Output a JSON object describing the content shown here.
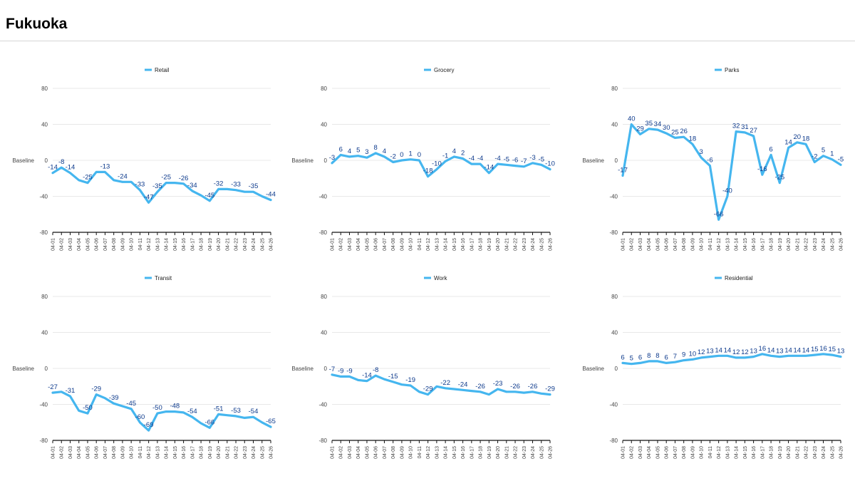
{
  "page": {
    "title": "Fukuoka"
  },
  "colors": {
    "line": "#45b6ef",
    "label": "#0d3a8c",
    "axis": "#111111",
    "text": "#444444"
  },
  "chart_data": [
    {
      "type": "line",
      "series_name": "Retail",
      "y_axis_label": "Baseline",
      "ylim": [
        -80,
        80
      ],
      "yticks": [
        -80,
        -40,
        0,
        40,
        80
      ],
      "categories": [
        "04-01",
        "04-02",
        "04-03",
        "04-04",
        "04-05",
        "04-06",
        "04-07",
        "04-08",
        "04-09",
        "04-10",
        "04-11",
        "04-12",
        "04-13",
        "04-14",
        "04-15",
        "04-16",
        "04-17",
        "04-18",
        "04-19",
        "04-20",
        "04-21",
        "04-22",
        "04-23",
        "04-24",
        "04-25",
        "04-26"
      ],
      "values": [
        -14,
        -8,
        -14,
        -22,
        -25,
        -13,
        -13,
        -22,
        -24,
        -24,
        -33,
        -47,
        -35,
        -25,
        -25,
        -26,
        -34,
        -39,
        -45,
        -32,
        -32,
        -33,
        -35,
        -35,
        -40,
        -44
      ],
      "labels": [
        -14,
        -8,
        -14,
        null,
        -25,
        null,
        -13,
        null,
        -24,
        null,
        -33,
        -47,
        -35,
        -25,
        null,
        -26,
        -34,
        null,
        -45,
        -32,
        null,
        -33,
        null,
        -35,
        null,
        -44
      ]
    },
    {
      "type": "line",
      "series_name": "Grocery",
      "y_axis_label": "Baseline",
      "ylim": [
        -80,
        80
      ],
      "yticks": [
        -80,
        -40,
        0,
        40,
        80
      ],
      "categories": [
        "04-01",
        "04-02",
        "04-03",
        "04-04",
        "04-05",
        "04-06",
        "04-07",
        "04-08",
        "04-09",
        "04-10",
        "04-11",
        "04-12",
        "04-13",
        "04-14",
        "04-15",
        "04-16",
        "04-17",
        "04-18",
        "04-19",
        "04-20",
        "04-21",
        "04-22",
        "04-23",
        "04-24",
        "04-25",
        "04-26"
      ],
      "values": [
        -3,
        6,
        4,
        5,
        3,
        8,
        4,
        -2,
        0,
        1,
        0,
        -18,
        -10,
        -1,
        4,
        2,
        -4,
        -4,
        -14,
        -4,
        -5,
        -6,
        -7,
        -3,
        -5,
        -10
      ],
      "labels": [
        -3,
        6,
        4,
        5,
        3,
        8,
        4,
        -2,
        0,
        1,
        0,
        -18,
        -10,
        -1,
        4,
        2,
        -4,
        -4,
        -14,
        -4,
        -5,
        -6,
        -7,
        -3,
        -5,
        -10
      ]
    },
    {
      "type": "line",
      "series_name": "Parks",
      "y_axis_label": "Baseline",
      "ylim": [
        -80,
        80
      ],
      "yticks": [
        -80,
        -40,
        0,
        40,
        80
      ],
      "categories": [
        "04-01",
        "04-02",
        "04-03",
        "04-04",
        "04-05",
        "04-06",
        "04-07",
        "04-08",
        "04-09",
        "04-10",
        "04-11",
        "04-12",
        "04-13",
        "04-14",
        "04-15",
        "04-16",
        "04-17",
        "04-18",
        "04-19",
        "04-20",
        "04-21",
        "04-22",
        "04-23",
        "04-24",
        "04-25",
        "04-26"
      ],
      "values": [
        -17,
        40,
        29,
        35,
        34,
        30,
        25,
        26,
        18,
        3,
        -6,
        -66,
        -40,
        32,
        31,
        27,
        -16,
        6,
        -25,
        14,
        20,
        18,
        -2,
        5,
        1,
        -5
      ],
      "labels": [
        -17,
        40,
        29,
        35,
        34,
        30,
        25,
        26,
        18,
        3,
        -6,
        -66,
        -40,
        32,
        31,
        27,
        -16,
        6,
        -25,
        14,
        20,
        18,
        -2,
        5,
        1,
        -5
      ]
    },
    {
      "type": "line",
      "series_name": "Transit",
      "y_axis_label": "Baseline",
      "ylim": [
        -80,
        80
      ],
      "yticks": [
        -80,
        -40,
        0,
        40,
        80
      ],
      "categories": [
        "04-01",
        "04-02",
        "04-03",
        "04-04",
        "04-05",
        "04-06",
        "04-07",
        "04-08",
        "04-09",
        "04-10",
        "04-11",
        "04-12",
        "04-13",
        "04-14",
        "04-15",
        "04-16",
        "04-17",
        "04-18",
        "04-19",
        "04-20",
        "04-21",
        "04-22",
        "04-23",
        "04-24",
        "04-25",
        "04-26"
      ],
      "values": [
        -27,
        -26,
        -31,
        -47,
        -50,
        -29,
        -33,
        -39,
        -42,
        -45,
        -60,
        -69,
        -50,
        -48,
        -48,
        -49,
        -54,
        -61,
        -66,
        -51,
        -52,
        -53,
        -55,
        -54,
        -60,
        -65
      ],
      "labels": [
        -27,
        null,
        -31,
        null,
        -50,
        -29,
        null,
        -39,
        null,
        -45,
        -60,
        -69,
        -50,
        null,
        -48,
        null,
        -54,
        null,
        -66,
        -51,
        null,
        -53,
        null,
        -54,
        null,
        -65
      ]
    },
    {
      "type": "line",
      "series_name": "Work",
      "y_axis_label": "Baseline",
      "ylim": [
        -80,
        80
      ],
      "yticks": [
        -80,
        -40,
        0,
        40,
        80
      ],
      "categories": [
        "04-01",
        "04-02",
        "04-03",
        "04-04",
        "04-05",
        "04-06",
        "04-07",
        "04-08",
        "04-09",
        "04-10",
        "04-11",
        "04-12",
        "04-13",
        "04-14",
        "04-15",
        "04-16",
        "04-17",
        "04-18",
        "04-19",
        "04-20",
        "04-21",
        "04-22",
        "04-23",
        "04-24",
        "04-25",
        "04-26"
      ],
      "values": [
        -7,
        -9,
        -9,
        -13,
        -14,
        -8,
        -12,
        -15,
        -18,
        -19,
        -26,
        -29,
        -20,
        -22,
        -23,
        -24,
        -25,
        -26,
        -29,
        -23,
        -26,
        -26,
        -27,
        -26,
        -28,
        -29
      ],
      "labels": [
        -7,
        -9,
        -9,
        null,
        -14,
        -8,
        null,
        -15,
        null,
        -19,
        null,
        -29,
        null,
        -22,
        null,
        -24,
        null,
        -26,
        null,
        -23,
        null,
        -26,
        null,
        -26,
        null,
        -29
      ]
    },
    {
      "type": "line",
      "series_name": "Residential",
      "y_axis_label": "Baseline",
      "ylim": [
        -80,
        80
      ],
      "yticks": [
        -80,
        -40,
        0,
        40,
        80
      ],
      "categories": [
        "04-01",
        "04-02",
        "04-03",
        "04-04",
        "04-05",
        "04-06",
        "04-07",
        "04-08",
        "04-09",
        "04-10",
        "04-11",
        "04-12",
        "04-13",
        "04-14",
        "04-15",
        "04-16",
        "04-17",
        "04-18",
        "04-19",
        "04-20",
        "04-21",
        "04-22",
        "04-23",
        "04-24",
        "04-25",
        "04-26"
      ],
      "values": [
        6,
        5,
        6,
        8,
        8,
        6,
        7,
        9,
        10,
        12,
        13,
        14,
        14,
        12,
        12,
        13,
        16,
        14,
        13,
        14,
        14,
        14,
        15,
        16,
        15,
        13
      ],
      "labels": [
        6,
        5,
        6,
        8,
        8,
        6,
        7,
        9,
        10,
        12,
        13,
        14,
        14,
        12,
        12,
        13,
        16,
        14,
        13,
        14,
        14,
        14,
        15,
        16,
        15,
        13
      ]
    }
  ]
}
